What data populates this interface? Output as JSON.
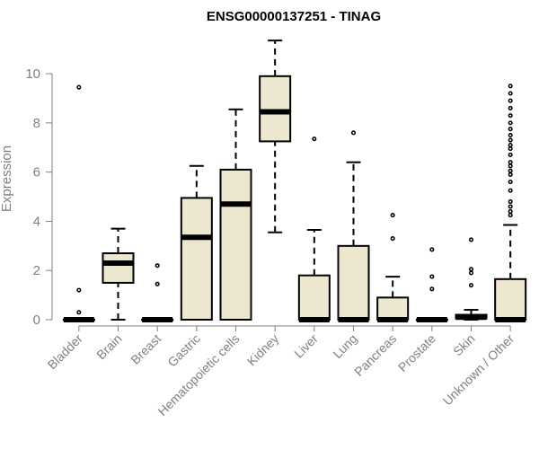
{
  "chart_data": {
    "type": "boxplot",
    "title": "ENSG00000137251 - TINAG",
    "xlabel": "",
    "ylabel": "Expression",
    "ylim": [
      0,
      11.5
    ],
    "yticks": [
      0,
      2,
      4,
      6,
      8,
      10
    ],
    "categories": [
      "Bladder",
      "Brain",
      "Breast",
      "Gastric",
      "Hematopoietic cells",
      "Kidney",
      "Liver",
      "Lung",
      "Pancreas",
      "Prostate",
      "Skin",
      "Unknown / Other"
    ],
    "box_fill": "#ede7d0",
    "box_stroke": "#000000",
    "axis_color": "#808080",
    "boxes": [
      {
        "category": "Bladder",
        "whisker_low": 0,
        "q1": 0,
        "median": 0,
        "q3": 0,
        "whisker_high": 0,
        "outliers": [
          9.45,
          1.2,
          0.3
        ]
      },
      {
        "category": "Brain",
        "whisker_low": 0,
        "q1": 1.5,
        "median": 2.3,
        "q3": 2.7,
        "whisker_high": 3.7,
        "outliers": []
      },
      {
        "category": "Breast",
        "whisker_low": 0,
        "q1": 0,
        "median": 0,
        "q3": 0,
        "whisker_high": 0,
        "outliers": [
          2.2,
          1.45
        ]
      },
      {
        "category": "Gastric",
        "whisker_low": 0,
        "q1": 0,
        "median": 3.35,
        "q3": 4.95,
        "whisker_high": 6.25,
        "outliers": []
      },
      {
        "category": "Hematopoietic cells",
        "whisker_low": 0,
        "q1": 0,
        "median": 4.7,
        "q3": 6.1,
        "whisker_high": 8.55,
        "outliers": []
      },
      {
        "category": "Kidney",
        "whisker_low": 3.55,
        "q1": 7.25,
        "median": 8.45,
        "q3": 9.9,
        "whisker_high": 11.35,
        "outliers": []
      },
      {
        "category": "Liver",
        "whisker_low": 0,
        "q1": 0,
        "median": 0,
        "q3": 1.8,
        "whisker_high": 3.65,
        "outliers": [
          7.35
        ]
      },
      {
        "category": "Lung",
        "whisker_low": 0,
        "q1": 0,
        "median": 0,
        "q3": 3.0,
        "whisker_high": 6.4,
        "outliers": [
          7.6
        ]
      },
      {
        "category": "Pancreas",
        "whisker_low": 0,
        "q1": 0,
        "median": 0,
        "q3": 0.9,
        "whisker_high": 1.75,
        "outliers": [
          4.25,
          3.3
        ]
      },
      {
        "category": "Prostate",
        "whisker_low": 0,
        "q1": 0,
        "median": 0,
        "q3": 0,
        "whisker_high": 0,
        "outliers": [
          2.85,
          1.75,
          1.25
        ]
      },
      {
        "category": "Skin",
        "whisker_low": 0,
        "q1": 0.05,
        "median": 0.1,
        "q3": 0.2,
        "whisker_high": 0.4,
        "outliers": [
          3.25,
          2.05,
          1.9,
          1.4
        ]
      },
      {
        "category": "Unknown / Other",
        "whisker_low": 0,
        "q1": 0,
        "median": 0,
        "q3": 1.65,
        "whisker_high": 3.85,
        "outliers": [
          9.5,
          9.2,
          8.9,
          8.6,
          8.3,
          8.0,
          7.75,
          7.5,
          7.3,
          7.1,
          6.95,
          6.7,
          6.4,
          6.25,
          6.05,
          5.9,
          5.6,
          5.25,
          4.8,
          4.6,
          4.4,
          4.25
        ]
      }
    ]
  }
}
